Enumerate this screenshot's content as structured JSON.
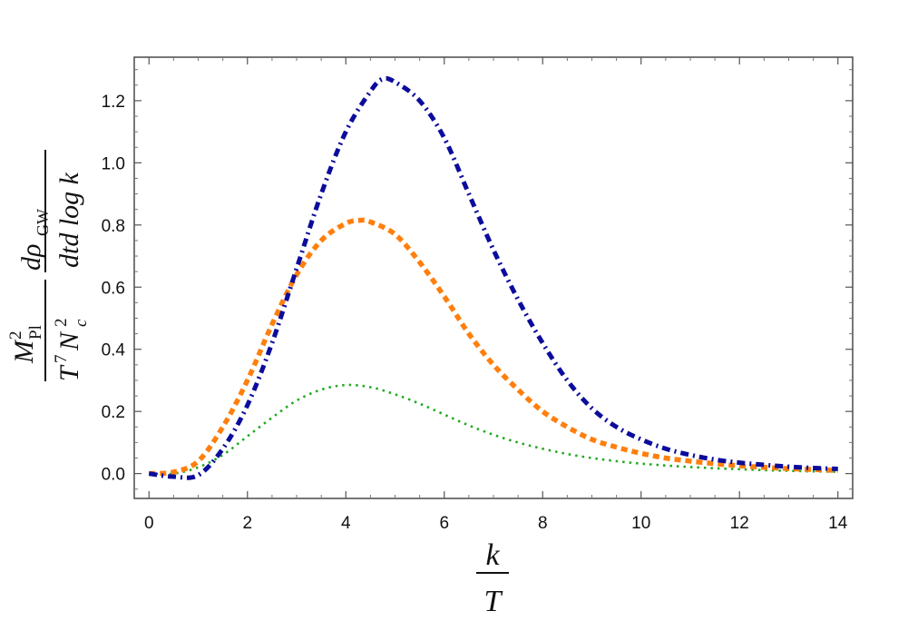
{
  "chart_data": {
    "type": "line",
    "xlabel": {
      "numerator": "k",
      "denominator": "T"
    },
    "ylabel": {
      "factor1_numerator": "M",
      "factor1_numerator_sup": "2",
      "factor1_numerator_sub": "Pl",
      "factor1_denominator": "T",
      "factor1_denominator_sup": "7",
      "factor1_denominator_mid": "N",
      "factor1_denominator_mid_sup": "2",
      "factor1_denominator_mid_sub": "c",
      "factor2_numerator": "dρ",
      "factor2_numerator_sub": "GW",
      "factor2_denominator": "dtd log k"
    },
    "xlim": [
      -0.3,
      14.3
    ],
    "ylim": [
      -0.08,
      1.34
    ],
    "x_ticks": [
      0,
      2,
      4,
      6,
      8,
      10,
      12,
      14
    ],
    "x_tick_labels": [
      "0",
      "2",
      "4",
      "6",
      "8",
      "10",
      "12",
      "14"
    ],
    "y_ticks": [
      0.0,
      0.2,
      0.4,
      0.6,
      0.8,
      1.0,
      1.2
    ],
    "y_tick_labels": [
      "0.0",
      "0.2",
      "0.4",
      "0.6",
      "0.8",
      "1.0",
      "1.2"
    ],
    "grid": false,
    "series": [
      {
        "style": "dash-dot",
        "color": "#0c0c9c",
        "x": [
          0,
          0.5,
          1.0,
          1.5,
          2.0,
          2.5,
          3.0,
          3.5,
          4.0,
          4.5,
          4.75,
          5.0,
          5.5,
          6.0,
          6.5,
          7.0,
          7.5,
          8.0,
          8.5,
          9.0,
          9.5,
          10.0,
          10.5,
          11.0,
          11.5,
          12.0,
          12.5,
          13.0,
          13.5,
          14.0
        ],
        "y": [
          0.0,
          -0.01,
          -0.005,
          0.08,
          0.22,
          0.42,
          0.66,
          0.9,
          1.1,
          1.23,
          1.27,
          1.26,
          1.2,
          1.08,
          0.9,
          0.72,
          0.56,
          0.42,
          0.3,
          0.21,
          0.15,
          0.11,
          0.08,
          0.06,
          0.045,
          0.035,
          0.028,
          0.022,
          0.018,
          0.015
        ]
      },
      {
        "style": "dashed",
        "color": "#ff7f0e",
        "x": [
          0,
          0.5,
          1.0,
          1.5,
          2.0,
          2.5,
          3.0,
          3.5,
          4.0,
          4.3,
          4.5,
          5.0,
          5.5,
          6.0,
          6.5,
          7.0,
          7.5,
          8.0,
          8.5,
          9.0,
          9.5,
          10.0,
          10.5,
          11.0,
          11.5,
          12.0,
          12.5,
          13.0,
          13.5,
          14.0
        ],
        "y": [
          0.0,
          0.005,
          0.04,
          0.15,
          0.3,
          0.48,
          0.64,
          0.75,
          0.805,
          0.815,
          0.81,
          0.77,
          0.68,
          0.57,
          0.45,
          0.35,
          0.27,
          0.2,
          0.15,
          0.11,
          0.085,
          0.065,
          0.05,
          0.04,
          0.032,
          0.025,
          0.02,
          0.016,
          0.013,
          0.01
        ]
      },
      {
        "style": "dotted",
        "color": "#22aa22",
        "x": [
          0,
          0.5,
          1.0,
          1.5,
          2.0,
          2.5,
          3.0,
          3.5,
          4.0,
          4.5,
          5.0,
          5.5,
          6.0,
          6.5,
          7.0,
          7.5,
          8.0,
          8.5,
          9.0,
          9.5,
          10.0,
          10.5,
          11.0,
          11.5,
          12.0,
          12.5,
          13.0,
          13.5,
          14.0
        ],
        "y": [
          0.0,
          0.0,
          0.02,
          0.06,
          0.12,
          0.18,
          0.235,
          0.27,
          0.285,
          0.278,
          0.255,
          0.225,
          0.19,
          0.155,
          0.125,
          0.1,
          0.08,
          0.063,
          0.05,
          0.04,
          0.032,
          0.026,
          0.021,
          0.017,
          0.014,
          0.011,
          0.009,
          0.007,
          0.006
        ]
      }
    ]
  }
}
